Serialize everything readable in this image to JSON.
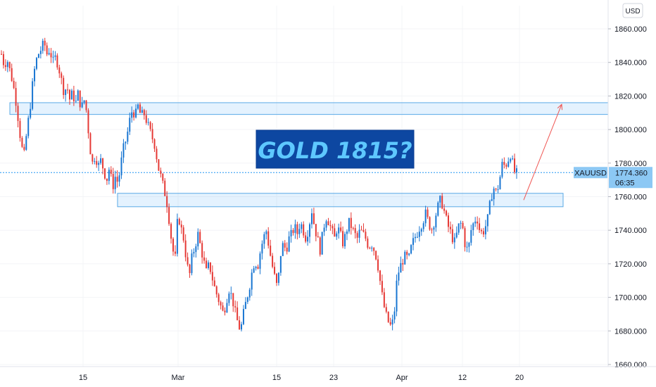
{
  "chart_data": {
    "type": "candlestick",
    "symbol": "XAUUSD",
    "currency": "USD",
    "title": "GOLD 1815?",
    "ylim": [
      1655,
      1870
    ],
    "y_ticks": [
      1660,
      1680,
      1700,
      1720,
      1740,
      1760,
      1780,
      1800,
      1820,
      1840,
      1860
    ],
    "y_tick_labels": [
      "1660.000",
      "1680.000",
      "1700.000",
      "1720.000",
      "1740.000",
      "1760.000",
      "1780.000",
      "1800.000",
      "1820.000",
      "1840.000",
      "1860.000"
    ],
    "x_ticks": [
      "15",
      "Mar",
      "15",
      "23",
      "Apr",
      "12",
      "20"
    ],
    "last_price": "1774.360",
    "countdown": "06:35",
    "zones": [
      {
        "name": "resistance",
        "low": 1809,
        "high": 1816
      },
      {
        "name": "support",
        "low": 1754,
        "high": 1762
      }
    ],
    "projection": {
      "from": 1758,
      "to": 1815
    },
    "price_path": [
      1845,
      1838,
      1842,
      1835,
      1828,
      1818,
      1805,
      1790,
      1785,
      1800,
      1812,
      1828,
      1840,
      1845,
      1848,
      1852,
      1845,
      1848,
      1840,
      1843,
      1838,
      1830,
      1822,
      1826,
      1818,
      1822,
      1815,
      1822,
      1812,
      1818,
      1810,
      1790,
      1780,
      1785,
      1778,
      1782,
      1775,
      1770,
      1778,
      1765,
      1772,
      1768,
      1780,
      1790,
      1795,
      1805,
      1812,
      1808,
      1814,
      1808,
      1810,
      1805,
      1800,
      1795,
      1790,
      1778,
      1772,
      1765,
      1758,
      1745,
      1730,
      1722,
      1750,
      1742,
      1735,
      1722,
      1712,
      1725,
      1730,
      1738,
      1730,
      1722,
      1715,
      1720,
      1712,
      1705,
      1700,
      1695,
      1690,
      1698,
      1705,
      1700,
      1692,
      1685,
      1680,
      1690,
      1698,
      1705,
      1715,
      1722,
      1718,
      1728,
      1735,
      1740,
      1730,
      1720,
      1712,
      1705,
      1725,
      1732,
      1728,
      1735,
      1738,
      1742,
      1738,
      1745,
      1740,
      1735,
      1742,
      1752,
      1742,
      1735,
      1728,
      1740,
      1748,
      1745,
      1740,
      1735,
      1742,
      1738,
      1732,
      1738,
      1745,
      1742,
      1738,
      1735,
      1740,
      1738,
      1735,
      1730,
      1732,
      1728,
      1722,
      1710,
      1698,
      1690,
      1685,
      1682,
      1690,
      1712,
      1718,
      1722,
      1725,
      1722,
      1730,
      1735,
      1738,
      1742,
      1745,
      1750,
      1745,
      1740,
      1745,
      1752,
      1758,
      1755,
      1748,
      1742,
      1738,
      1732,
      1738,
      1745,
      1742,
      1730,
      1728,
      1740,
      1745,
      1748,
      1740,
      1738,
      1742,
      1748,
      1760,
      1765,
      1762,
      1770,
      1780,
      1778,
      1782,
      1786,
      1775,
      1774
    ]
  }
}
